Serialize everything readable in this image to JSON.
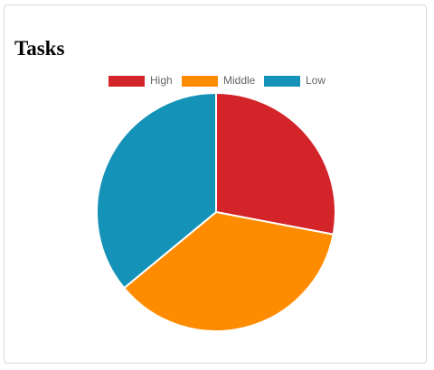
{
  "card": {
    "title": "Tasks"
  },
  "chart_data": {
    "type": "pie",
    "title": "",
    "categories": [
      "High",
      "Middle",
      "Low"
    ],
    "values": [
      28,
      36,
      36
    ],
    "colors": [
      "#d32429",
      "#ff8c00",
      "#1592b8"
    ],
    "legend": "top",
    "start_angle_deg": -90,
    "direction": "clockwise"
  }
}
